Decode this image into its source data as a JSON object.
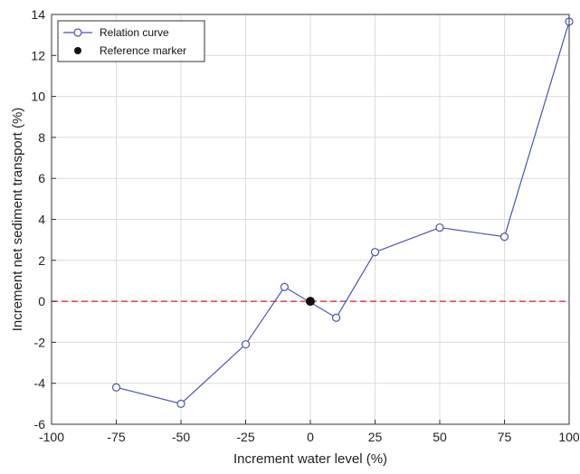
{
  "chart_data": {
    "type": "line",
    "xlabel": "Increment water level (%)",
    "ylabel": "Increment net sediment transport (%)",
    "xlim": [
      -100,
      100
    ],
    "ylim": [
      -6,
      14
    ],
    "xticks": [
      -100,
      -75,
      -50,
      -25,
      0,
      25,
      50,
      75,
      100
    ],
    "yticks": [
      -6,
      -4,
      -2,
      0,
      2,
      4,
      6,
      8,
      10,
      12,
      14
    ],
    "grid": true,
    "legend_position": "top-left",
    "series": [
      {
        "name": "Relation curve",
        "color": "#4a55b5",
        "marker": "open-circle",
        "x": [
          -75,
          -50,
          -25,
          -10,
          10,
          25,
          50,
          75,
          100
        ],
        "y": [
          -4.2,
          -5.0,
          -2.1,
          0.7,
          -0.8,
          2.4,
          3.6,
          3.15,
          13.65
        ]
      },
      {
        "name": "Reference marker",
        "color": "#111111",
        "marker": "filled-circle",
        "x": [
          0
        ],
        "y": [
          0
        ]
      }
    ],
    "reference_line": {
      "y": 0,
      "style": "dashed",
      "color": "#d9424f"
    }
  }
}
